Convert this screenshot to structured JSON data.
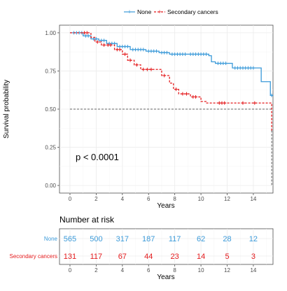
{
  "chart_data": {
    "type": "line",
    "subtype": "kaplan-meier",
    "legend": {
      "position": "top",
      "entries": [
        {
          "name": "None",
          "color": "#3b9ad9"
        },
        {
          "name": "Secondary cancers",
          "color": "#e41a1c"
        }
      ]
    },
    "ylabel": "Survival probability",
    "xlabel": "Years",
    "xlim": [
      -0.8,
      15.5
    ],
    "ylim": [
      -0.05,
      1.05
    ],
    "x_ticks": [
      "0",
      "2",
      "4",
      "6",
      "8",
      "10",
      "12",
      "14"
    ],
    "y_ticks": [
      "0.00",
      "0.25",
      "0.50",
      "0.75",
      "1.00"
    ],
    "grid": true,
    "median_line_y": 0.5,
    "annotation": "p < 0.0001",
    "series": [
      {
        "name": "None",
        "color": "#3b9ad9",
        "dash": false,
        "steps": [
          [
            0,
            1.0
          ],
          [
            1.0,
            0.98
          ],
          [
            1.6,
            0.96
          ],
          [
            2.2,
            0.95
          ],
          [
            2.8,
            0.93
          ],
          [
            3.6,
            0.91
          ],
          [
            4.6,
            0.89
          ],
          [
            5.8,
            0.88
          ],
          [
            6.8,
            0.87
          ],
          [
            7.6,
            0.86
          ],
          [
            9.0,
            0.86
          ],
          [
            10.6,
            0.85
          ],
          [
            10.8,
            0.81
          ],
          [
            11.1,
            0.8
          ],
          [
            12.4,
            0.77
          ],
          [
            14.2,
            0.77
          ],
          [
            14.6,
            0.68
          ],
          [
            15.3,
            0.59
          ],
          [
            15.5,
            0.59
          ]
        ],
        "censors": [
          0.3,
          0.5,
          0.7,
          0.9,
          1.2,
          1.4,
          1.8,
          2.0,
          2.4,
          2.6,
          3.0,
          3.2,
          3.4,
          3.8,
          4.0,
          4.2,
          4.4,
          4.8,
          5.0,
          5.2,
          5.4,
          5.6,
          6.0,
          6.2,
          6.4,
          6.6,
          7.0,
          7.2,
          7.4,
          7.8,
          8.0,
          8.2,
          8.4,
          8.6,
          8.8,
          9.2,
          9.4,
          9.6,
          9.8,
          10.0,
          10.2,
          10.4,
          11.3,
          11.5,
          11.7,
          11.9,
          12.6,
          12.8,
          13.0,
          13.2,
          13.4,
          13.6,
          13.8,
          14.0,
          15.4
        ]
      },
      {
        "name": "Secondary cancers",
        "color": "#e41a1c",
        "dash": true,
        "steps": [
          [
            0,
            1.0
          ],
          [
            1.6,
            0.97
          ],
          [
            1.9,
            0.94
          ],
          [
            2.4,
            0.92
          ],
          [
            3.4,
            0.89
          ],
          [
            4.0,
            0.86
          ],
          [
            4.4,
            0.82
          ],
          [
            4.9,
            0.79
          ],
          [
            5.4,
            0.76
          ],
          [
            7.0,
            0.72
          ],
          [
            7.6,
            0.67
          ],
          [
            7.9,
            0.63
          ],
          [
            8.3,
            0.6
          ],
          [
            9.2,
            0.58
          ],
          [
            10.0,
            0.55
          ],
          [
            10.4,
            0.54
          ],
          [
            15.4,
            0.36
          ],
          [
            15.5,
            0.36
          ]
        ],
        "censors": [
          1.1,
          1.3,
          2.1,
          2.6,
          2.9,
          3.1,
          3.6,
          3.8,
          4.2,
          4.6,
          5.1,
          5.6,
          5.9,
          6.2,
          7.2,
          8.1,
          8.6,
          8.9,
          9.4,
          9.6,
          11.4,
          11.6,
          11.8,
          13.2,
          14.1
        ],
        "tail_drop": {
          "x": 15.4,
          "y_from": 0.36,
          "y_to": 0.0
        }
      }
    ]
  },
  "risk_table": {
    "title": "Number at risk",
    "xlabel": "Years",
    "x_ticks": [
      "0",
      "2",
      "4",
      "6",
      "8",
      "10",
      "12",
      "14"
    ],
    "rows": [
      {
        "label": "None",
        "color": "#3b9ad9",
        "values": [
          "565",
          "500",
          "317",
          "187",
          "117",
          "62",
          "28",
          "12"
        ]
      },
      {
        "label": "Secondary cancers",
        "color": "#e41a1c",
        "values": [
          "131",
          "117",
          "67",
          "44",
          "23",
          "14",
          "5",
          "3"
        ]
      }
    ]
  }
}
